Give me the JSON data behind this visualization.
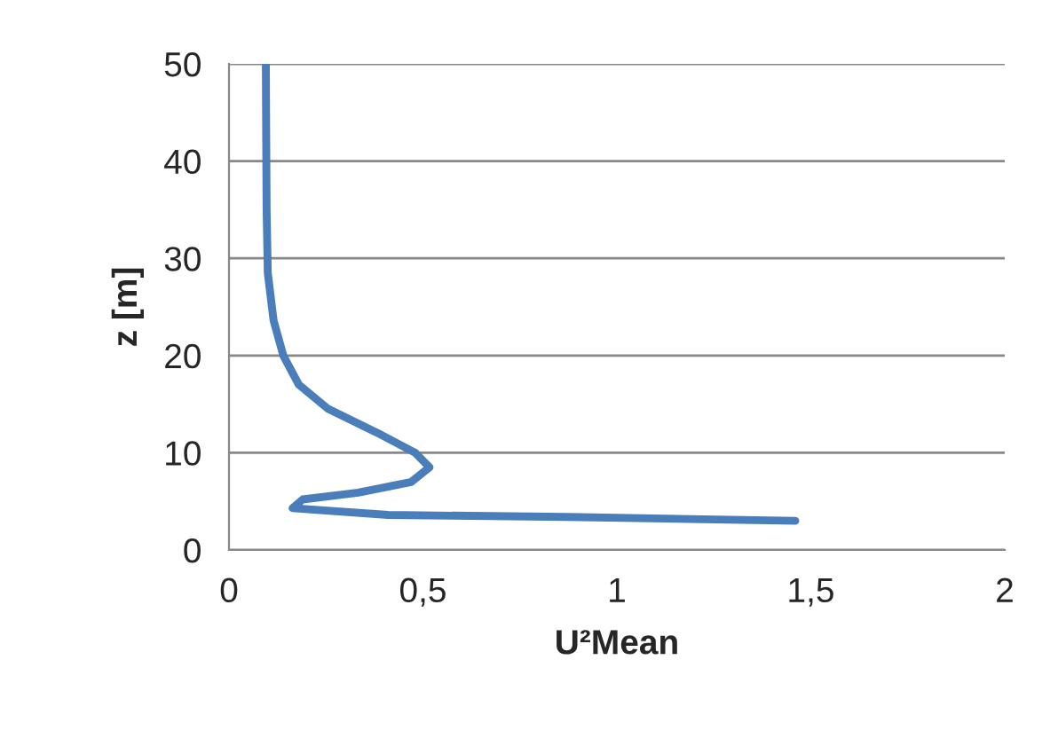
{
  "chart_data": {
    "type": "line",
    "xlabel": "U²Mean",
    "ylabel": "z [m]",
    "series": [
      {
        "color": "#4a7ebb",
        "x": [
          1.46,
          0.87,
          0.41,
          0.164,
          0.19,
          0.333,
          0.47,
          0.517,
          0.48,
          0.38,
          0.256,
          0.18,
          0.14,
          0.115,
          0.1,
          0.097,
          0.096,
          0.095
        ],
        "values": [
          3.0,
          3.4,
          3.6,
          4.3,
          5.2,
          5.9,
          7.0,
          8.5,
          10,
          12.1,
          14.5,
          17,
          20,
          23.6,
          28.5,
          35,
          42,
          50
        ]
      }
    ],
    "xlim": [
      0,
      2
    ],
    "xticks": [
      0,
      {
        "value": 0.5,
        "label": "0,5"
      },
      1,
      {
        "value": 1.5,
        "label": "1,5"
      },
      2
    ],
    "ylim": [
      0,
      50
    ],
    "yticks": [
      0,
      10,
      20,
      30,
      40,
      50
    ],
    "grid": "y",
    "legend": false,
    "marker": "none",
    "line_style": "solid"
  }
}
